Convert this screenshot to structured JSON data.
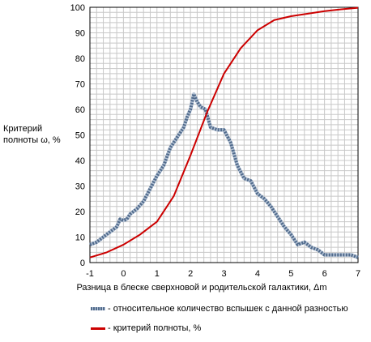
{
  "chart_data": {
    "type": "line",
    "xlabel": "Разница в блеске сверхновой и родительской галактики, Δm",
    "ylabel_line1": "Критерий",
    "ylabel_line2": "полноты ω,  %",
    "xlim": [
      -1,
      7
    ],
    "ylim": [
      0,
      100
    ],
    "x_ticks": [
      "-1",
      "0",
      "1",
      "2",
      "3",
      "4",
      "5",
      "6",
      "7"
    ],
    "y_ticks": [
      "0",
      "10",
      "20",
      "30",
      "40",
      "50",
      "60",
      "70",
      "80",
      "90",
      "100"
    ],
    "grid": true,
    "legend_position": "bottom",
    "series": [
      {
        "name": "- относительное количество вспышек с данной разностью",
        "color": "#516b8c",
        "style": "dotted",
        "x": [
          -1.0,
          -0.8,
          -0.6,
          -0.4,
          -0.2,
          -0.1,
          0.0,
          0.1,
          0.2,
          0.4,
          0.6,
          0.8,
          1.0,
          1.2,
          1.4,
          1.6,
          1.8,
          1.9,
          2.0,
          2.1,
          2.2,
          2.3,
          2.45,
          2.6,
          2.8,
          3.0,
          3.2,
          3.4,
          3.6,
          3.8,
          4.0,
          4.2,
          4.4,
          4.6,
          4.8,
          5.0,
          5.2,
          5.4,
          5.6,
          5.8,
          6.0,
          6.2,
          6.4,
          6.6,
          6.8,
          7.0
        ],
        "y": [
          7,
          8,
          10,
          12,
          14,
          17,
          16.5,
          17,
          19,
          21,
          24,
          29,
          34,
          38,
          45,
          49,
          53,
          57,
          60,
          66,
          63,
          61,
          60,
          53,
          52,
          52,
          47,
          38,
          33,
          32,
          27,
          25,
          22,
          18,
          14,
          11,
          7,
          8,
          6,
          5,
          3,
          3,
          3,
          3,
          3,
          2
        ]
      },
      {
        "name": "- критерий полноты, %",
        "color": "#cc0000",
        "style": "solid",
        "x": [
          -1.0,
          -0.5,
          0.0,
          0.5,
          1.0,
          1.5,
          2.0,
          2.5,
          3.0,
          3.5,
          4.0,
          4.5,
          5.0,
          5.5,
          6.0,
          6.5,
          7.0
        ],
        "y": [
          2,
          4,
          7,
          11,
          16,
          26,
          42,
          59,
          74,
          84,
          91,
          95,
          96.5,
          97.5,
          98.5,
          99.2,
          99.8
        ]
      }
    ]
  }
}
